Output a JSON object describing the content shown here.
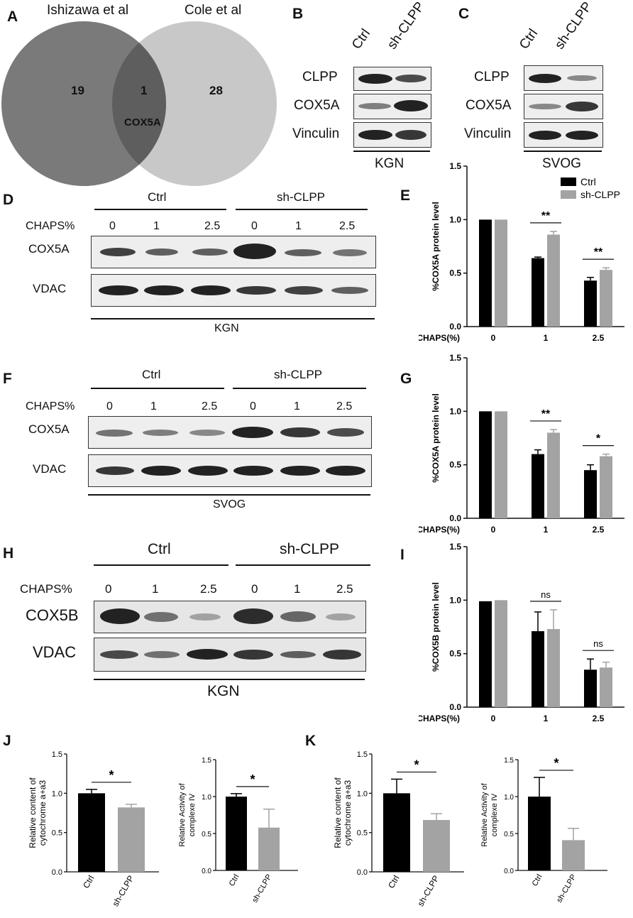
{
  "panels": {
    "A": {
      "label": "A",
      "set_left": "Ishizawa et al",
      "set_right": "Cole et al",
      "left_only": "19",
      "overlap": "1",
      "overlap_gene": "COX5A",
      "right_only": "28",
      "colors": {
        "left": "#7a7a7a",
        "overlap": "#5e5e5e",
        "right": "#c8c8c8"
      }
    },
    "B": {
      "label": "B",
      "lanes": [
        "Ctrl",
        "sh-CLPP"
      ],
      "rows": [
        "CLPP",
        "COX5A",
        "Vinculin"
      ],
      "cell_line": "KGN"
    },
    "C": {
      "label": "C",
      "lanes": [
        "Ctrl",
        "sh-CLPP"
      ],
      "rows": [
        "CLPP",
        "COX5A",
        "Vinculin"
      ],
      "cell_line": "SVOG"
    },
    "D": {
      "label": "D",
      "group_ctrl": "Ctrl",
      "group_sh": "sh-CLPP",
      "chaps_label": "CHAPS%",
      "chaps": [
        "0",
        "1",
        "2.5",
        "0",
        "1",
        "2.5"
      ],
      "rows": [
        "COX5A",
        "VDAC"
      ],
      "cell_line": "KGN"
    },
    "F": {
      "label": "F",
      "group_ctrl": "Ctrl",
      "group_sh": "sh-CLPP",
      "chaps_label": "CHAPS%",
      "chaps": [
        "0",
        "1",
        "2.5",
        "0",
        "1",
        "2.5"
      ],
      "rows": [
        "COX5A",
        "VDAC"
      ],
      "cell_line": "SVOG"
    },
    "H": {
      "label": "H",
      "group_ctrl": "Ctrl",
      "group_sh": "sh-CLPP",
      "chaps_label": "CHAPS%",
      "chaps": [
        "0",
        "1",
        "2.5",
        "0",
        "1",
        "2.5"
      ],
      "rows": [
        "COX5B",
        "VDAC"
      ],
      "cell_line": "KGN"
    }
  },
  "colors": {
    "ctrl": "#000000",
    "sh": "#a3a3a3"
  },
  "chart_data": [
    {
      "panel": "E",
      "type": "bar",
      "categories": [
        "0",
        "1",
        "2.5"
      ],
      "xlabel": "CHAPS(%)",
      "ylabel": "%COX5A protein level",
      "ylim": [
        0,
        1.5
      ],
      "yticks": [
        "0.0",
        "0.5",
        "1.0",
        "1.5"
      ],
      "legend": [
        "Ctrl",
        "sh-CLPP"
      ],
      "series": [
        {
          "name": "Ctrl",
          "values": [
            1.0,
            0.64,
            0.43
          ],
          "errors": [
            0,
            0.01,
            0.03
          ]
        },
        {
          "name": "sh-CLPP",
          "values": [
            1.0,
            0.86,
            0.53
          ],
          "errors": [
            0,
            0.03,
            0.02
          ]
        }
      ],
      "significance": [
        "",
        "**",
        "**"
      ]
    },
    {
      "panel": "G",
      "type": "bar",
      "categories": [
        "0",
        "1",
        "2.5"
      ],
      "xlabel": "CHAPS(%)",
      "ylabel": "%COX5A protein level",
      "ylim": [
        0,
        1.5
      ],
      "yticks": [
        "0.0",
        "0.5",
        "1.0",
        "1.5"
      ],
      "series": [
        {
          "name": "Ctrl",
          "values": [
            1.0,
            0.6,
            0.45
          ],
          "errors": [
            0,
            0.04,
            0.05
          ]
        },
        {
          "name": "sh-CLPP",
          "values": [
            1.0,
            0.8,
            0.58
          ],
          "errors": [
            0,
            0.03,
            0.02
          ]
        }
      ],
      "significance": [
        "",
        "**",
        "*"
      ]
    },
    {
      "panel": "I",
      "type": "bar",
      "categories": [
        "0",
        "1",
        "2.5"
      ],
      "xlabel": "CHAPS(%)",
      "ylabel": "%COX5B protein level",
      "ylim": [
        0,
        1.5
      ],
      "yticks": [
        "0.0",
        "0.5",
        "1.0",
        "1.5"
      ],
      "series": [
        {
          "name": "Ctrl",
          "values": [
            0.99,
            0.71,
            0.35
          ],
          "errors": [
            0,
            0.18,
            0.1
          ]
        },
        {
          "name": "sh-CLPP",
          "values": [
            1.0,
            0.73,
            0.37
          ],
          "errors": [
            0,
            0.18,
            0.05
          ]
        }
      ],
      "significance": [
        "",
        "ns",
        "ns"
      ]
    },
    {
      "panel": "J1",
      "type": "bar",
      "categories": [
        "Ctrl",
        "sh-CLPP"
      ],
      "ylabel_lines": [
        "Relative content of",
        "cytochrome a+a3"
      ],
      "ylim": [
        0,
        1.5
      ],
      "yticks": [
        "0.0",
        "0.5",
        "1.0",
        "1.5"
      ],
      "values": [
        1.0,
        0.82
      ],
      "errors": [
        0.05,
        0.04
      ],
      "significance": "*"
    },
    {
      "panel": "J2",
      "type": "bar",
      "categories": [
        "Ctrl",
        "sh-CLPP"
      ],
      "ylabel_lines": [
        "Relative Activity of",
        "complexe IV"
      ],
      "ylim": [
        0,
        1.5
      ],
      "yticks": [
        "0.0",
        "0.5",
        "1.0",
        "1.5"
      ],
      "values": [
        1.0,
        0.58
      ],
      "errors": [
        0.04,
        0.25
      ],
      "significance": "*"
    },
    {
      "panel": "K1",
      "type": "bar",
      "categories": [
        "Ctrl",
        "sh-CLPP"
      ],
      "ylabel_lines": [
        "Relative content of",
        "cytochrome a+a3"
      ],
      "ylim": [
        0,
        1.5
      ],
      "yticks": [
        "0.0",
        "0.5",
        "1.0",
        "1.5"
      ],
      "values": [
        1.0,
        0.66
      ],
      "errors": [
        0.18,
        0.08
      ],
      "significance": "*"
    },
    {
      "panel": "K2",
      "type": "bar",
      "categories": [
        "Ctrl",
        "sh-CLPP"
      ],
      "ylabel_lines": [
        "Relative Activity of",
        "complexe IV"
      ],
      "ylim": [
        0,
        1.5
      ],
      "yticks": [
        "0.0",
        "0.5",
        "1.0",
        "1.5"
      ],
      "values": [
        1.0,
        0.41
      ],
      "errors": [
        0.26,
        0.16
      ],
      "significance": "*"
    }
  ],
  "panel_labels": {
    "E": "E",
    "G": "G",
    "I": "I",
    "J": "J",
    "K": "K"
  }
}
